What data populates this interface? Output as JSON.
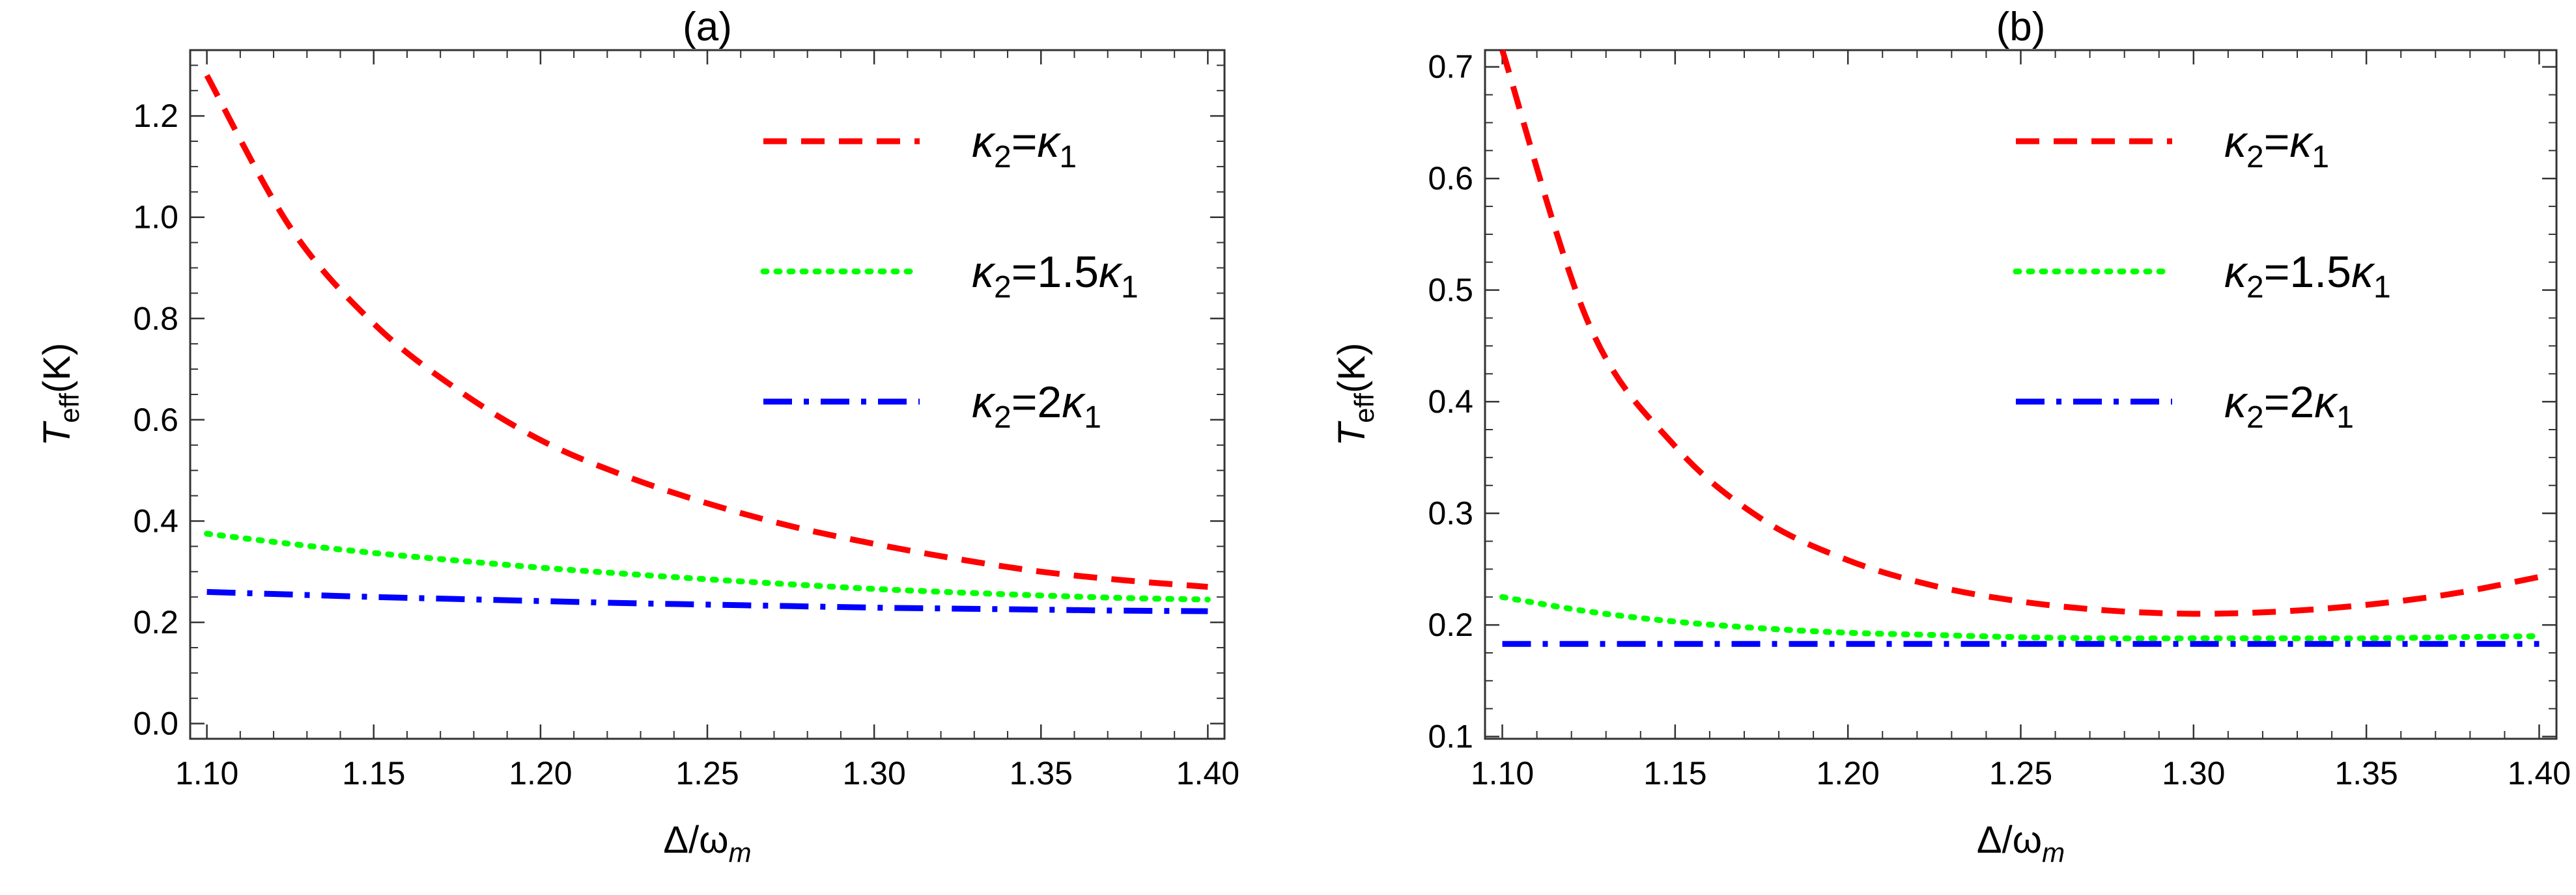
{
  "chart_data": [
    {
      "type": "line",
      "title": "(a)",
      "xlabel": "Δ/ω",
      "xlabel_sub": "m",
      "ylabel": "T",
      "ylabel_sub": "eff",
      "ylabel_unit": "(K)",
      "xlim": [
        1.095,
        1.405
      ],
      "ylim": [
        -0.03,
        1.33
      ],
      "xticks": [
        "1.10",
        "1.15",
        "1.20",
        "1.25",
        "1.30",
        "1.35",
        "1.40"
      ],
      "yticks": [
        "0.0",
        "0.2",
        "0.4",
        "0.6",
        "0.8",
        "1.0",
        "1.2"
      ],
      "grid": false,
      "legend_position": "top-right",
      "x": [
        1.1,
        1.125,
        1.15,
        1.175,
        1.2,
        1.225,
        1.25,
        1.275,
        1.3,
        1.325,
        1.35,
        1.375,
        1.4
      ],
      "series": [
        {
          "name_base": "κ",
          "name_base_sub": "2",
          "name_eq": "=",
          "name_coef": "",
          "name_var": "κ",
          "name_var_sub": "1",
          "style": "dashed",
          "color": "#ff0000",
          "values": [
            1.28,
            0.98,
            0.79,
            0.66,
            0.56,
            0.49,
            0.435,
            0.39,
            0.355,
            0.325,
            0.3,
            0.283,
            0.27
          ]
        },
        {
          "name_base": "κ",
          "name_base_sub": "2",
          "name_eq": "=",
          "name_coef": "1.5",
          "name_var": "κ",
          "name_var_sub": "1",
          "style": "dotted",
          "color": "#00ff00",
          "values": [
            0.375,
            0.355,
            0.337,
            0.322,
            0.308,
            0.296,
            0.285,
            0.275,
            0.266,
            0.259,
            0.253,
            0.248,
            0.245
          ]
        },
        {
          "name_base": "κ",
          "name_base_sub": "2",
          "name_eq": "=",
          "name_coef": "2",
          "name_var": "κ",
          "name_var_sub": "1",
          "style": "dashdot",
          "color": "#0000ff",
          "values": [
            0.26,
            0.255,
            0.25,
            0.246,
            0.242,
            0.238,
            0.235,
            0.232,
            0.229,
            0.227,
            0.225,
            0.223,
            0.222
          ]
        }
      ]
    },
    {
      "type": "line",
      "title": "(b)",
      "xlabel": "Δ/ω",
      "xlabel_sub": "m",
      "ylabel": "T",
      "ylabel_sub": "eff",
      "ylabel_unit": "(K)",
      "xlim": [
        1.095,
        1.405
      ],
      "ylim": [
        0.098,
        0.715
      ],
      "xticks": [
        "1.10",
        "1.15",
        "1.20",
        "1.25",
        "1.30",
        "1.35",
        "1.40"
      ],
      "yticks": [
        "0.1",
        "0.2",
        "0.3",
        "0.4",
        "0.5",
        "0.6",
        "0.7"
      ],
      "grid": false,
      "legend_position": "top-right",
      "x": [
        1.1,
        1.125,
        1.15,
        1.175,
        1.2,
        1.225,
        1.25,
        1.275,
        1.3,
        1.325,
        1.35,
        1.375,
        1.4
      ],
      "series": [
        {
          "name_base": "κ",
          "name_base_sub": "2",
          "name_eq": "=",
          "name_coef": "",
          "name_var": "κ",
          "name_var_sub": "1",
          "style": "dashed",
          "color": "#ff0000",
          "values": [
            0.715,
            0.47,
            0.36,
            0.295,
            0.258,
            0.235,
            0.221,
            0.213,
            0.21,
            0.212,
            0.218,
            0.228,
            0.243
          ]
        },
        {
          "name_base": "κ",
          "name_base_sub": "2",
          "name_eq": "=",
          "name_coef": "1.5",
          "name_var": "κ",
          "name_var_sub": "1",
          "style": "dotted",
          "color": "#00ff00",
          "values": [
            0.225,
            0.212,
            0.203,
            0.197,
            0.193,
            0.191,
            0.189,
            0.188,
            0.188,
            0.188,
            0.188,
            0.189,
            0.19
          ]
        },
        {
          "name_base": "κ",
          "name_base_sub": "2",
          "name_eq": "=",
          "name_coef": "2",
          "name_var": "κ",
          "name_var_sub": "1",
          "style": "dashdot",
          "color": "#0000ff",
          "values": [
            0.183,
            0.183,
            0.183,
            0.183,
            0.183,
            0.183,
            0.183,
            0.183,
            0.183,
            0.183,
            0.183,
            0.183,
            0.183
          ]
        }
      ]
    }
  ]
}
